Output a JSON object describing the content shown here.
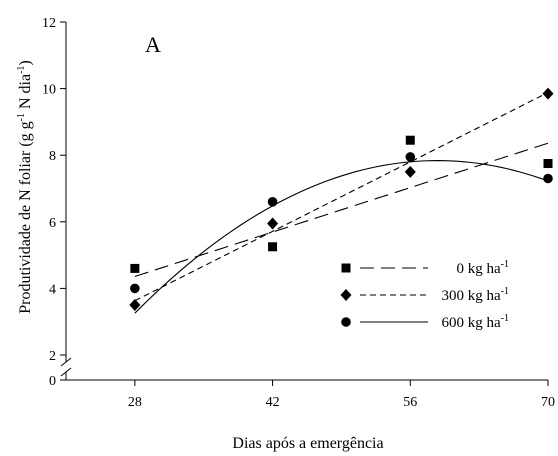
{
  "chart_data": {
    "type": "scatter",
    "panel_label": "A",
    "xlabel": "Dias após a emergência",
    "ylabel": {
      "prefix": "Produtividade de N foliar (g g",
      "sup1": "-1",
      "mid": " N dia",
      "sup2": "-1",
      "suffix": ")"
    },
    "x_ticks": [
      28,
      42,
      56,
      70
    ],
    "y_ticks": [
      0,
      2,
      4,
      6,
      8,
      10,
      12
    ],
    "xlim": [
      21,
      70
    ],
    "ylim": [
      0,
      12
    ],
    "y_axis_break": "between 0 and 2",
    "grid": false,
    "legend_position": "center-right",
    "series": [
      {
        "name": "0 kg ha",
        "name_sup": "-1",
        "marker": "square",
        "line_style": "long-dash",
        "x": [
          28,
          42,
          56,
          70
        ],
        "y": [
          4.6,
          5.25,
          8.45,
          7.75
        ],
        "fit": {
          "type": "linear",
          "intercept": 1.69,
          "slope": 0.0953
        }
      },
      {
        "name": "300 kg ha",
        "name_sup": "-1",
        "marker": "diamond",
        "line_style": "short-dash",
        "x": [
          28,
          42,
          56,
          70
        ],
        "y": [
          3.5,
          5.95,
          7.5,
          9.85
        ],
        "fit": {
          "type": "linear",
          "intercept": -0.54,
          "slope": 0.1489
        }
      },
      {
        "name": "600 kg ha",
        "name_sup": "-1",
        "marker": "circle",
        "line_style": "solid",
        "x": [
          28,
          42,
          56,
          70
        ],
        "y": [
          4.0,
          6.6,
          7.95,
          7.3
        ],
        "fit": {
          "type": "quadratic",
          "a": -0.004847,
          "b": 0.5695,
          "c": -8.89
        }
      }
    ]
  }
}
